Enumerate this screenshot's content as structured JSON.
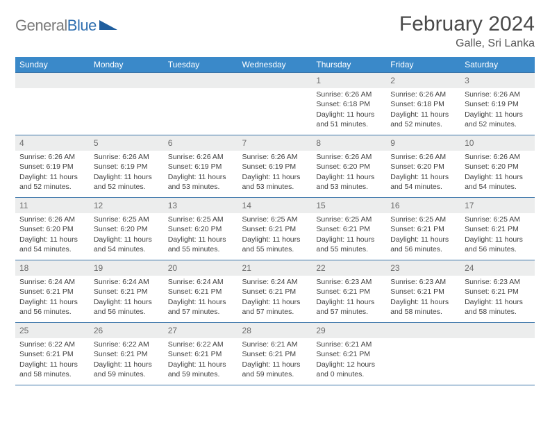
{
  "brand": {
    "name_gray": "General",
    "name_blue": "Blue"
  },
  "title": {
    "month": "February 2024",
    "location": "Galle, Sri Lanka"
  },
  "colors": {
    "header_bg": "#3a89c9",
    "header_text": "#ffffff",
    "daynum_bg": "#eceded",
    "daynum_text": "#6b6b6b",
    "border": "#3a74a8",
    "body_text": "#3f3f3f",
    "brand_gray": "#7a7a7a",
    "brand_blue": "#2f6fb0",
    "logo_shape": "#1f5e9e"
  },
  "weekdays": [
    "Sunday",
    "Monday",
    "Tuesday",
    "Wednesday",
    "Thursday",
    "Friday",
    "Saturday"
  ],
  "weeks": [
    [
      null,
      null,
      null,
      null,
      {
        "n": "1",
        "sunrise": "6:26 AM",
        "sunset": "6:18 PM",
        "daylight": "11 hours and 51 minutes."
      },
      {
        "n": "2",
        "sunrise": "6:26 AM",
        "sunset": "6:18 PM",
        "daylight": "11 hours and 52 minutes."
      },
      {
        "n": "3",
        "sunrise": "6:26 AM",
        "sunset": "6:19 PM",
        "daylight": "11 hours and 52 minutes."
      }
    ],
    [
      {
        "n": "4",
        "sunrise": "6:26 AM",
        "sunset": "6:19 PM",
        "daylight": "11 hours and 52 minutes."
      },
      {
        "n": "5",
        "sunrise": "6:26 AM",
        "sunset": "6:19 PM",
        "daylight": "11 hours and 52 minutes."
      },
      {
        "n": "6",
        "sunrise": "6:26 AM",
        "sunset": "6:19 PM",
        "daylight": "11 hours and 53 minutes."
      },
      {
        "n": "7",
        "sunrise": "6:26 AM",
        "sunset": "6:19 PM",
        "daylight": "11 hours and 53 minutes."
      },
      {
        "n": "8",
        "sunrise": "6:26 AM",
        "sunset": "6:20 PM",
        "daylight": "11 hours and 53 minutes."
      },
      {
        "n": "9",
        "sunrise": "6:26 AM",
        "sunset": "6:20 PM",
        "daylight": "11 hours and 54 minutes."
      },
      {
        "n": "10",
        "sunrise": "6:26 AM",
        "sunset": "6:20 PM",
        "daylight": "11 hours and 54 minutes."
      }
    ],
    [
      {
        "n": "11",
        "sunrise": "6:26 AM",
        "sunset": "6:20 PM",
        "daylight": "11 hours and 54 minutes."
      },
      {
        "n": "12",
        "sunrise": "6:25 AM",
        "sunset": "6:20 PM",
        "daylight": "11 hours and 54 minutes."
      },
      {
        "n": "13",
        "sunrise": "6:25 AM",
        "sunset": "6:20 PM",
        "daylight": "11 hours and 55 minutes."
      },
      {
        "n": "14",
        "sunrise": "6:25 AM",
        "sunset": "6:21 PM",
        "daylight": "11 hours and 55 minutes."
      },
      {
        "n": "15",
        "sunrise": "6:25 AM",
        "sunset": "6:21 PM",
        "daylight": "11 hours and 55 minutes."
      },
      {
        "n": "16",
        "sunrise": "6:25 AM",
        "sunset": "6:21 PM",
        "daylight": "11 hours and 56 minutes."
      },
      {
        "n": "17",
        "sunrise": "6:25 AM",
        "sunset": "6:21 PM",
        "daylight": "11 hours and 56 minutes."
      }
    ],
    [
      {
        "n": "18",
        "sunrise": "6:24 AM",
        "sunset": "6:21 PM",
        "daylight": "11 hours and 56 minutes."
      },
      {
        "n": "19",
        "sunrise": "6:24 AM",
        "sunset": "6:21 PM",
        "daylight": "11 hours and 56 minutes."
      },
      {
        "n": "20",
        "sunrise": "6:24 AM",
        "sunset": "6:21 PM",
        "daylight": "11 hours and 57 minutes."
      },
      {
        "n": "21",
        "sunrise": "6:24 AM",
        "sunset": "6:21 PM",
        "daylight": "11 hours and 57 minutes."
      },
      {
        "n": "22",
        "sunrise": "6:23 AM",
        "sunset": "6:21 PM",
        "daylight": "11 hours and 57 minutes."
      },
      {
        "n": "23",
        "sunrise": "6:23 AM",
        "sunset": "6:21 PM",
        "daylight": "11 hours and 58 minutes."
      },
      {
        "n": "24",
        "sunrise": "6:23 AM",
        "sunset": "6:21 PM",
        "daylight": "11 hours and 58 minutes."
      }
    ],
    [
      {
        "n": "25",
        "sunrise": "6:22 AM",
        "sunset": "6:21 PM",
        "daylight": "11 hours and 58 minutes."
      },
      {
        "n": "26",
        "sunrise": "6:22 AM",
        "sunset": "6:21 PM",
        "daylight": "11 hours and 59 minutes."
      },
      {
        "n": "27",
        "sunrise": "6:22 AM",
        "sunset": "6:21 PM",
        "daylight": "11 hours and 59 minutes."
      },
      {
        "n": "28",
        "sunrise": "6:21 AM",
        "sunset": "6:21 PM",
        "daylight": "11 hours and 59 minutes."
      },
      {
        "n": "29",
        "sunrise": "6:21 AM",
        "sunset": "6:21 PM",
        "daylight": "12 hours and 0 minutes."
      },
      null,
      null
    ]
  ],
  "labels": {
    "sunrise_prefix": "Sunrise: ",
    "sunset_prefix": "Sunset: ",
    "daylight_prefix": "Daylight: "
  }
}
